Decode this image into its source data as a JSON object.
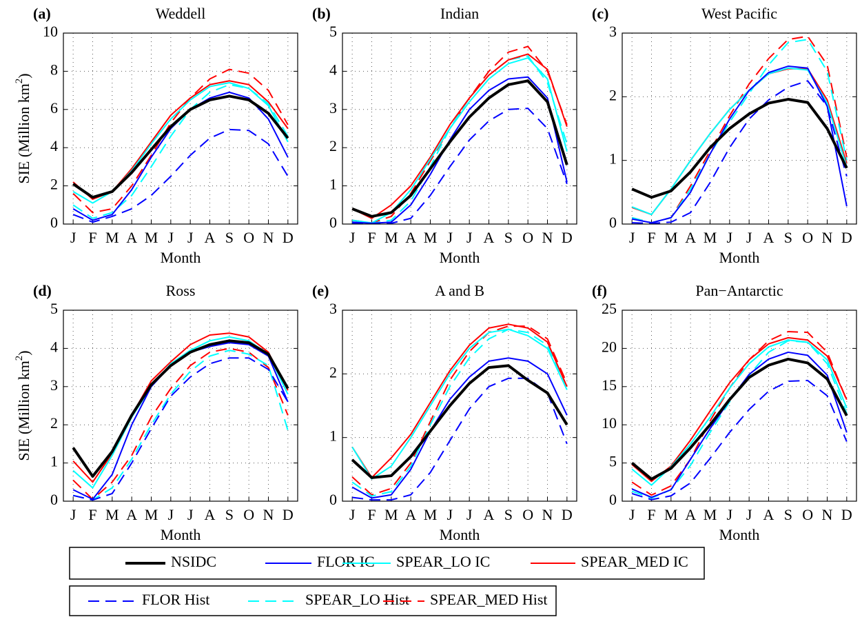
{
  "chart_data": [
    {
      "type": "line",
      "panel": "(a)",
      "title": "Weddell",
      "xlabel": "Month",
      "ylabel": [
        "SIE (Million km",
        "2",
        ")"
      ],
      "categories": [
        "J",
        "F",
        "M",
        "A",
        "M",
        "J",
        "J",
        "A",
        "S",
        "O",
        "N",
        "D"
      ],
      "ylim": [
        0,
        10
      ],
      "yticks": [
        0,
        2,
        4,
        6,
        8,
        10
      ],
      "grid": true,
      "series": [
        {
          "values": [
            2.1,
            1.4,
            1.7,
            2.7,
            3.9,
            5.1,
            6.0,
            6.5,
            6.7,
            6.5,
            5.8,
            4.5
          ]
        },
        {
          "values": [
            0.8,
            0.2,
            0.5,
            1.8,
            3.5,
            5.0,
            6.0,
            6.6,
            6.9,
            6.6,
            5.5,
            3.5
          ]
        },
        {
          "values": [
            1.7,
            1.1,
            1.7,
            2.8,
            4.2,
            5.5,
            6.5,
            7.2,
            7.4,
            7.1,
            6.2,
            4.3
          ]
        },
        {
          "values": [
            2.2,
            1.3,
            1.7,
            2.9,
            4.3,
            5.7,
            6.6,
            7.3,
            7.5,
            7.3,
            6.4,
            5.0
          ]
        },
        {
          "values": [
            0.5,
            0.1,
            0.4,
            0.8,
            1.5,
            2.5,
            3.6,
            4.5,
            4.95,
            4.9,
            4.2,
            2.5
          ]
        },
        {
          "values": [
            1.0,
            0.3,
            0.6,
            1.5,
            3.0,
            4.6,
            6.0,
            6.9,
            7.3,
            7.1,
            6.3,
            4.6
          ]
        },
        {
          "values": [
            1.6,
            0.6,
            0.8,
            2.0,
            3.6,
            5.3,
            6.6,
            7.6,
            8.1,
            7.9,
            7.0,
            5.2
          ]
        }
      ]
    },
    {
      "type": "line",
      "panel": "(b)",
      "title": "Indian",
      "xlabel": "Month",
      "categories": [
        "J",
        "F",
        "M",
        "A",
        "M",
        "J",
        "J",
        "A",
        "S",
        "O",
        "N",
        "D"
      ],
      "ylim": [
        0,
        5
      ],
      "yticks": [
        0,
        1,
        2,
        3,
        4,
        5
      ],
      "grid": true,
      "series": [
        {
          "values": [
            0.4,
            0.2,
            0.3,
            0.75,
            1.45,
            2.15,
            2.8,
            3.3,
            3.65,
            3.75,
            3.2,
            1.55
          ]
        },
        {
          "values": [
            0.05,
            0.02,
            0.05,
            0.5,
            1.3,
            2.2,
            3.0,
            3.5,
            3.8,
            3.85,
            3.3,
            1.1
          ]
        },
        {
          "values": [
            0.1,
            0.03,
            0.3,
            0.9,
            1.7,
            2.5,
            3.2,
            3.8,
            4.2,
            4.35,
            3.8,
            1.9
          ]
        },
        {
          "values": [
            0.4,
            0.15,
            0.5,
            1.0,
            1.75,
            2.6,
            3.3,
            3.9,
            4.3,
            4.45,
            4.05,
            2.55
          ]
        },
        {
          "values": [
            0.02,
            0.01,
            0.02,
            0.15,
            0.75,
            1.5,
            2.2,
            2.7,
            3.0,
            3.03,
            2.5,
            1.05
          ]
        },
        {
          "values": [
            0.05,
            0.02,
            0.1,
            0.6,
            1.5,
            2.5,
            3.3,
            3.9,
            4.3,
            4.4,
            3.7,
            2.1
          ]
        },
        {
          "values": [
            0.1,
            0.03,
            0.2,
            0.8,
            1.65,
            2.5,
            3.3,
            4.0,
            4.5,
            4.65,
            4.0,
            2.6
          ]
        }
      ]
    },
    {
      "type": "line",
      "panel": "(c)",
      "title": "West Pacific",
      "xlabel": "Month",
      "categories": [
        "J",
        "F",
        "M",
        "A",
        "M",
        "J",
        "J",
        "A",
        "S",
        "O",
        "N",
        "D"
      ],
      "ylim": [
        0,
        3
      ],
      "yticks": [
        0,
        1,
        2,
        3
      ],
      "grid": true,
      "series": [
        {
          "values": [
            0.55,
            0.42,
            0.52,
            0.82,
            1.2,
            1.5,
            1.73,
            1.9,
            1.96,
            1.91,
            1.5,
            0.88
          ]
        },
        {
          "values": [
            0.08,
            0.02,
            0.1,
            0.5,
            1.1,
            1.65,
            2.1,
            2.38,
            2.48,
            2.45,
            1.85,
            0.28
          ]
        },
        {
          "values": [
            0.27,
            0.15,
            0.55,
            1.0,
            1.42,
            1.8,
            2.1,
            2.36,
            2.45,
            2.42,
            1.9,
            0.9
          ]
        },
        {
          "values": [
            0.26,
            0.15,
            0.55,
            1.0,
            1.42,
            1.8,
            2.1,
            2.36,
            2.44,
            2.44,
            1.95,
            0.95
          ]
        },
        {
          "values": [
            0.02,
            0.01,
            0.03,
            0.18,
            0.65,
            1.2,
            1.65,
            1.95,
            2.15,
            2.25,
            1.85,
            0.75
          ]
        },
        {
          "values": [
            0.1,
            0.02,
            0.1,
            0.55,
            1.1,
            1.6,
            2.05,
            2.5,
            2.85,
            2.9,
            2.4,
            1.0
          ]
        },
        {
          "values": [
            0.1,
            0.02,
            0.1,
            0.6,
            1.15,
            1.7,
            2.2,
            2.6,
            2.9,
            2.95,
            2.5,
            1.05
          ]
        }
      ]
    },
    {
      "type": "line",
      "panel": "(d)",
      "title": "Ross",
      "xlabel": "Month",
      "ylabel": [
        "SIE (Million km",
        "2",
        ")"
      ],
      "categories": [
        "J",
        "F",
        "M",
        "A",
        "M",
        "J",
        "J",
        "A",
        "S",
        "O",
        "N",
        "D"
      ],
      "ylim": [
        0,
        5
      ],
      "yticks": [
        0,
        1,
        2,
        3,
        4,
        5
      ],
      "grid": true,
      "series": [
        {
          "values": [
            1.4,
            0.65,
            1.3,
            2.25,
            3.05,
            3.55,
            3.9,
            4.1,
            4.2,
            4.15,
            3.85,
            2.95
          ]
        },
        {
          "values": [
            0.3,
            0.05,
            0.7,
            2.0,
            3.0,
            3.55,
            3.9,
            4.05,
            4.15,
            4.1,
            3.8,
            2.6
          ]
        },
        {
          "values": [
            0.8,
            0.35,
            1.2,
            2.2,
            3.0,
            3.6,
            3.95,
            4.2,
            4.3,
            4.2,
            3.85,
            2.8
          ]
        },
        {
          "values": [
            1.05,
            0.5,
            1.25,
            2.25,
            3.15,
            3.65,
            4.1,
            4.35,
            4.4,
            4.3,
            3.9,
            2.9
          ]
        },
        {
          "values": [
            0.15,
            0.03,
            0.2,
            1.0,
            1.9,
            2.75,
            3.25,
            3.6,
            3.75,
            3.75,
            3.45,
            2.6
          ]
        },
        {
          "values": [
            0.15,
            0.03,
            0.35,
            1.1,
            2.0,
            2.8,
            3.4,
            3.8,
            3.95,
            3.85,
            3.55,
            1.85
          ]
        },
        {
          "values": [
            0.55,
            0.05,
            0.5,
            1.2,
            2.2,
            2.95,
            3.55,
            3.9,
            4.0,
            3.9,
            3.5,
            2.25
          ]
        }
      ]
    },
    {
      "type": "line",
      "panel": "(e)",
      "title": "A and B",
      "xlabel": "Month",
      "categories": [
        "J",
        "F",
        "M",
        "A",
        "M",
        "J",
        "J",
        "A",
        "S",
        "O",
        "N",
        "D"
      ],
      "ylim": [
        0,
        3
      ],
      "yticks": [
        0,
        1,
        2,
        3
      ],
      "grid": true,
      "series": [
        {
          "values": [
            0.65,
            0.37,
            0.4,
            0.7,
            1.1,
            1.5,
            1.85,
            2.1,
            2.13,
            1.9,
            1.7,
            1.2
          ]
        },
        {
          "values": [
            0.22,
            0.05,
            0.1,
            0.5,
            1.1,
            1.6,
            1.95,
            2.2,
            2.25,
            2.2,
            2.0,
            1.35
          ]
        },
        {
          "values": [
            0.85,
            0.35,
            0.55,
            1.0,
            1.5,
            2.0,
            2.4,
            2.65,
            2.7,
            2.6,
            2.4,
            1.75
          ]
        },
        {
          "values": [
            0.85,
            0.37,
            0.68,
            1.05,
            1.55,
            2.05,
            2.45,
            2.72,
            2.78,
            2.72,
            2.5,
            1.8
          ]
        },
        {
          "values": [
            0.06,
            0.02,
            0.02,
            0.1,
            0.45,
            0.95,
            1.45,
            1.8,
            1.93,
            1.93,
            1.7,
            0.9
          ]
        },
        {
          "values": [
            0.3,
            0.08,
            0.15,
            0.55,
            1.2,
            1.8,
            2.25,
            2.55,
            2.7,
            2.65,
            2.45,
            1.8
          ]
        },
        {
          "values": [
            0.38,
            0.1,
            0.2,
            0.6,
            1.25,
            1.9,
            2.35,
            2.65,
            2.75,
            2.75,
            2.55,
            1.85
          ]
        }
      ]
    },
    {
      "type": "line",
      "panel": "(f)",
      "title": "Pan−Antarctic",
      "xlabel": "Month",
      "categories": [
        "J",
        "F",
        "M",
        "A",
        "M",
        "J",
        "J",
        "A",
        "S",
        "O",
        "N",
        "D"
      ],
      "ylim": [
        0,
        25
      ],
      "yticks": [
        0,
        5,
        10,
        15,
        20,
        25
      ],
      "grid": true,
      "series": [
        {
          "values": [
            5.0,
            2.9,
            4.3,
            7.0,
            10.0,
            13.3,
            16.2,
            17.8,
            18.6,
            18.1,
            16.0,
            11.2
          ]
        },
        {
          "values": [
            1.6,
            0.5,
            1.5,
            5.5,
            9.5,
            13.2,
            16.6,
            18.6,
            19.5,
            19.1,
            16.5,
            9.0
          ]
        },
        {
          "values": [
            4.2,
            2.1,
            4.5,
            7.5,
            11.0,
            14.8,
            18.0,
            20.2,
            21.1,
            20.8,
            18.5,
            12.2
          ]
        },
        {
          "values": [
            4.8,
            2.6,
            4.6,
            8.0,
            11.8,
            15.5,
            18.5,
            20.6,
            21.4,
            21.1,
            19.0,
            13.3
          ]
        },
        {
          "values": [
            1.0,
            0.2,
            0.7,
            2.4,
            5.6,
            9.0,
            12.0,
            14.4,
            15.7,
            15.8,
            13.8,
            7.8
          ]
        },
        {
          "values": [
            1.3,
            0.4,
            1.5,
            4.7,
            9.0,
            13.0,
            16.5,
            19.5,
            21.0,
            20.8,
            18.0,
            11.5
          ]
        },
        {
          "values": [
            2.5,
            0.8,
            2.0,
            5.5,
            10.5,
            14.8,
            18.5,
            21.0,
            22.2,
            22.1,
            19.5,
            13.2
          ]
        }
      ]
    }
  ],
  "legend": [
    {
      "name": "NSIDC",
      "color": "#000000",
      "width": 4,
      "dashed": false
    },
    {
      "name": "FLOR IC",
      "color": "#0000ff",
      "width": 2,
      "dashed": false
    },
    {
      "name": "SPEAR_LO IC",
      "color": "#00ffff",
      "width": 2,
      "dashed": false
    },
    {
      "name": "SPEAR_MED IC",
      "color": "#ff0000",
      "width": 2,
      "dashed": false
    },
    {
      "name": "FLOR Hist",
      "color": "#0000ff",
      "width": 2,
      "dashed": true
    },
    {
      "name": "SPEAR_LO Hist",
      "color": "#00ffff",
      "width": 2,
      "dashed": true
    },
    {
      "name": "SPEAR_MED Hist",
      "color": "#ff0000",
      "width": 2,
      "dashed": true
    }
  ]
}
